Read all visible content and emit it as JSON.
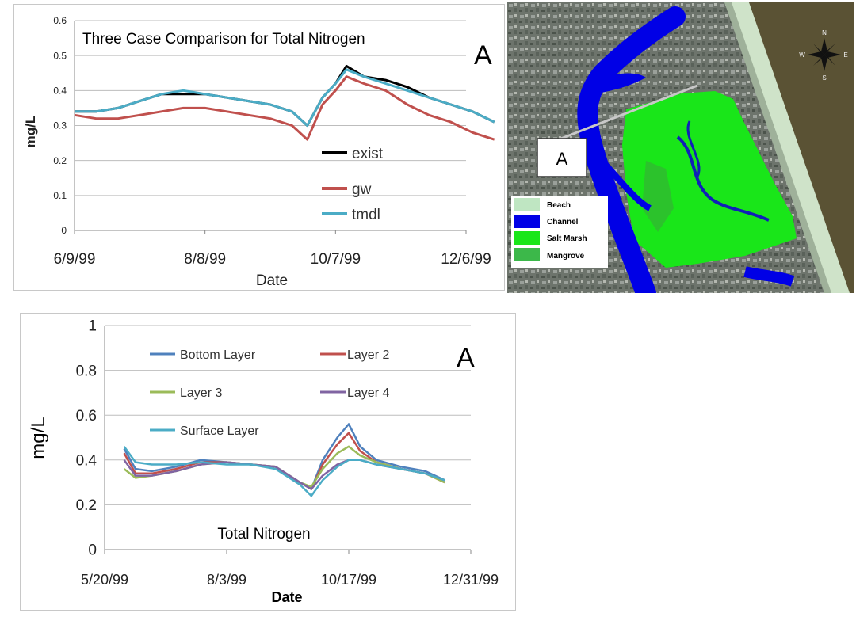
{
  "chart_data": [
    {
      "type": "line",
      "title": "Three Case Comparison for Total Nitrogen",
      "panel_label": "A",
      "xlabel": "Date",
      "ylabel": "mg/L",
      "x_ticks": [
        "6/9/99",
        "8/8/99",
        "10/7/99",
        "12/6/99"
      ],
      "y_ticks": [
        "0",
        "0.1",
        "0.2",
        "0.3",
        "0.4",
        "0.5",
        "0.6"
      ],
      "ylim": [
        0,
        0.6
      ],
      "grid": true,
      "legend_position": "bottom-right",
      "x": [
        "1999-06-09",
        "1999-06-19",
        "1999-06-29",
        "1999-07-09",
        "1999-07-19",
        "1999-07-29",
        "1999-08-08",
        "1999-08-18",
        "1999-08-28",
        "1999-09-07",
        "1999-09-17",
        "1999-09-24",
        "1999-10-01",
        "1999-10-07",
        "1999-10-12",
        "1999-10-20",
        "1999-10-30",
        "1999-11-09",
        "1999-11-19",
        "1999-11-29",
        "1999-12-09",
        "1999-12-19"
      ],
      "series": [
        {
          "name": "exist",
          "color": "#000000",
          "values": [
            0.34,
            0.34,
            0.35,
            0.37,
            0.39,
            0.39,
            0.39,
            0.38,
            0.37,
            0.36,
            0.34,
            0.3,
            0.38,
            0.42,
            0.47,
            0.44,
            0.43,
            0.41,
            0.38,
            0.36,
            0.34,
            0.31
          ]
        },
        {
          "name": "gw",
          "color": "#c0504d",
          "values": [
            0.33,
            0.32,
            0.32,
            0.33,
            0.34,
            0.35,
            0.35,
            0.34,
            0.33,
            0.32,
            0.3,
            0.26,
            0.36,
            0.4,
            0.44,
            0.42,
            0.4,
            0.36,
            0.33,
            0.31,
            0.28,
            0.26
          ]
        },
        {
          "name": "tmdl",
          "color": "#4bacc6",
          "values": [
            0.34,
            0.34,
            0.35,
            0.37,
            0.39,
            0.4,
            0.39,
            0.38,
            0.37,
            0.36,
            0.34,
            0.3,
            0.38,
            0.42,
            0.46,
            0.44,
            0.42,
            0.4,
            0.38,
            0.36,
            0.34,
            0.31
          ]
        }
      ]
    },
    {
      "type": "line",
      "title": "Total Nitrogen",
      "panel_label": "A",
      "xlabel": "Date",
      "ylabel": "mg/L",
      "x_ticks": [
        "5/20/99",
        "8/3/99",
        "10/17/99",
        "12/31/99"
      ],
      "y_ticks": [
        "0",
        "0.2",
        "0.4",
        "0.6",
        "0.8",
        "1"
      ],
      "ylim": [
        0,
        1
      ],
      "grid": true,
      "legend_position": "top-left",
      "x": [
        "1999-06-01",
        "1999-06-08",
        "1999-06-18",
        "1999-07-03",
        "1999-07-18",
        "1999-08-03",
        "1999-08-18",
        "1999-09-02",
        "1999-09-17",
        "1999-09-24",
        "1999-10-01",
        "1999-10-10",
        "1999-10-17",
        "1999-10-24",
        "1999-11-03",
        "1999-11-18",
        "1999-12-03",
        "1999-12-15"
      ],
      "series": [
        {
          "name": "Bottom Layer",
          "color": "#4f81bd",
          "values": [
            0.45,
            0.36,
            0.35,
            0.37,
            0.4,
            0.39,
            0.38,
            0.37,
            0.3,
            0.27,
            0.4,
            0.5,
            0.56,
            0.46,
            0.4,
            0.37,
            0.35,
            0.31
          ]
        },
        {
          "name": "Layer 2",
          "color": "#c0504d",
          "values": [
            0.43,
            0.34,
            0.34,
            0.36,
            0.39,
            0.39,
            0.38,
            0.37,
            0.3,
            0.27,
            0.38,
            0.47,
            0.52,
            0.44,
            0.39,
            0.36,
            0.34,
            0.3
          ]
        },
        {
          "name": "Layer 3",
          "color": "#9bbb59",
          "values": [
            0.36,
            0.32,
            0.33,
            0.35,
            0.38,
            0.39,
            0.38,
            0.37,
            0.3,
            0.28,
            0.36,
            0.43,
            0.46,
            0.42,
            0.39,
            0.36,
            0.34,
            0.3
          ]
        },
        {
          "name": "Layer 4",
          "color": "#8064a2",
          "values": [
            0.4,
            0.33,
            0.33,
            0.35,
            0.38,
            0.39,
            0.38,
            0.37,
            0.3,
            0.27,
            0.33,
            0.38,
            0.4,
            0.4,
            0.38,
            0.36,
            0.34,
            0.31
          ]
        },
        {
          "name": "Surface Layer",
          "color": "#4bacc6",
          "values": [
            0.46,
            0.39,
            0.38,
            0.38,
            0.39,
            0.38,
            0.38,
            0.36,
            0.29,
            0.24,
            0.31,
            0.37,
            0.4,
            0.4,
            0.38,
            0.36,
            0.34,
            0.31
          ]
        }
      ]
    }
  ],
  "map": {
    "panel_label": "A",
    "compass": {
      "n": "N",
      "e": "E",
      "s": "S",
      "w": "W"
    },
    "legend": [
      {
        "label": "Beach",
        "color": "#bfe6c2"
      },
      {
        "label": "Channel",
        "color": "#0000e6"
      },
      {
        "label": "Salt Marsh",
        "color": "#19e619"
      },
      {
        "label": "Mangrove",
        "color": "#3cb84a"
      }
    ]
  }
}
